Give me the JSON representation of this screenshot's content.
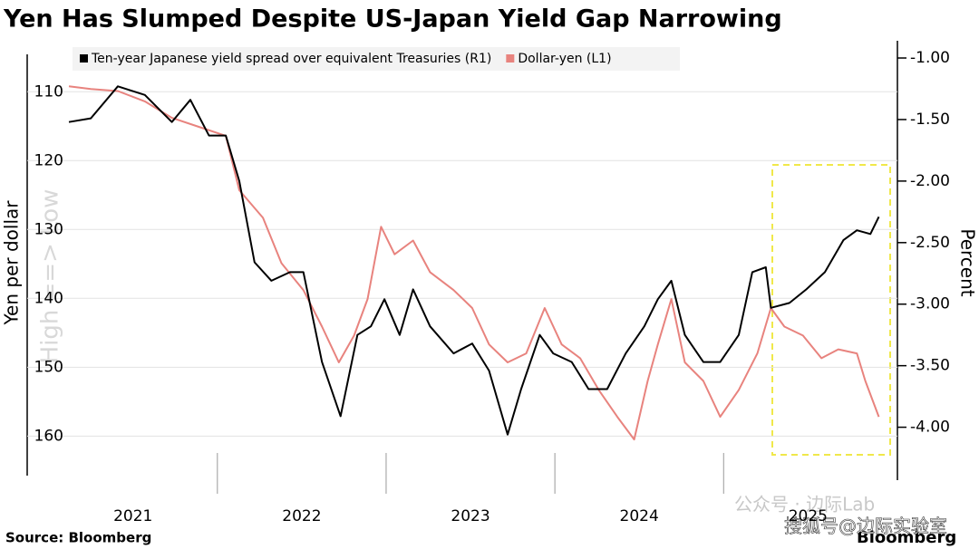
{
  "chart_data": {
    "type": "line",
    "title": "Yen Has Slumped Despite US-Japan Yield Gap Narrowing",
    "y_label": "Yen per dollar",
    "y2_label": "Percent",
    "annotation": "High ==> Low",
    "source": "Source: Bloomberg",
    "logo": "Bloomberg",
    "watermarks": [
      "公众号 · 边际Lab",
      "搜狐号@边际实验室"
    ],
    "xlim": [
      2021.12,
      2026.03
    ],
    "xticks": [
      {
        "value": 2021.5,
        "label": "2021"
      },
      {
        "value": 2022.5,
        "label": "2022"
      },
      {
        "value": 2023.5,
        "label": "2023"
      },
      {
        "value": 2024.5,
        "label": "2024"
      },
      {
        "value": 2025.5,
        "label": "2025"
      }
    ],
    "xgrid": [
      2022,
      2023,
      2024,
      2025
    ],
    "ylim": [
      102.6,
      166.4
    ],
    "y_inverted": true,
    "yticks": [
      110,
      120,
      130,
      140,
      150,
      160
    ],
    "y2lim": [
      -4.43,
      -0.86
    ],
    "y2ticks": [
      {
        "value": -1,
        "label": "-1.00"
      },
      {
        "value": -1.5,
        "label": "-1.50"
      },
      {
        "value": -2,
        "label": "-2.00"
      },
      {
        "value": -2.5,
        "label": "-2.50"
      },
      {
        "value": -3,
        "label": "-3.00"
      },
      {
        "value": -3.5,
        "label": "-3.50"
      },
      {
        "value": -4,
        "label": "-4.00"
      }
    ],
    "grid": true,
    "series": [
      {
        "name": "Ten-year Japanese yield spread over equivalent Treasuries (R1)",
        "color": "#000000",
        "axis": "y2",
        "x": [
          2021.12,
          2021.25,
          2021.41,
          2021.57,
          2021.73,
          2021.84,
          2021.95,
          2022.05,
          2022.13,
          2022.22,
          2022.32,
          2022.43,
          2022.51,
          2022.62,
          2022.73,
          2022.83,
          2022.91,
          2022.99,
          2023.08,
          2023.16,
          2023.26,
          2023.4,
          2023.51,
          2023.61,
          2023.72,
          2023.8,
          2023.91,
          2023.99,
          2024.1,
          2024.2,
          2024.31,
          2024.42,
          2024.53,
          2024.61,
          2024.69,
          2024.77,
          2024.88,
          2024.98,
          2025.09,
          2025.17,
          2025.25,
          2025.28,
          2025.39,
          2025.49,
          2025.6,
          2025.71,
          2025.79,
          2025.87,
          2025.92
        ],
        "values": [
          -1.52,
          -1.49,
          -1.23,
          -1.3,
          -1.52,
          -1.34,
          -1.63,
          -1.63,
          -2.0,
          -2.66,
          -2.81,
          -2.74,
          -2.74,
          -3.47,
          -3.91,
          -3.25,
          -3.18,
          -2.96,
          -3.25,
          -2.88,
          -3.18,
          -3.4,
          -3.32,
          -3.54,
          -4.06,
          -3.69,
          -3.25,
          -3.4,
          -3.47,
          -3.69,
          -3.69,
          -3.4,
          -3.18,
          -2.96,
          -2.81,
          -3.25,
          -3.47,
          -3.47,
          -3.25,
          -2.74,
          -2.7,
          -3.03,
          -2.99,
          -2.88,
          -2.74,
          -2.48,
          -2.4,
          -2.43,
          -2.29
        ]
      },
      {
        "name": "Dollar-yen (L1)",
        "color": "#e8837e",
        "axis": "y",
        "x": [
          2021.12,
          2021.25,
          2021.41,
          2021.57,
          2021.73,
          2021.89,
          2022.05,
          2022.13,
          2022.27,
          2022.38,
          2022.51,
          2022.62,
          2022.72,
          2022.81,
          2022.89,
          2022.97,
          2023.05,
          2023.16,
          2023.26,
          2023.4,
          2023.51,
          2023.61,
          2023.72,
          2023.83,
          2023.94,
          2024.04,
          2024.15,
          2024.26,
          2024.37,
          2024.47,
          2024.55,
          2024.61,
          2024.69,
          2024.77,
          2024.88,
          2024.98,
          2025.09,
          2025.2,
          2025.28,
          2025.36,
          2025.47,
          2025.58,
          2025.68,
          2025.79,
          2025.84,
          2025.92
        ],
        "values": [
          109.2,
          109.6,
          109.9,
          111.4,
          113.8,
          115.1,
          116.4,
          124.3,
          128.3,
          134.9,
          138.8,
          144.1,
          149.3,
          145.4,
          140.1,
          129.6,
          133.6,
          131.6,
          136.2,
          138.8,
          141.4,
          146.7,
          149.3,
          148.0,
          141.4,
          146.7,
          148.7,
          153.3,
          157.2,
          160.5,
          152.0,
          146.7,
          140.1,
          149.3,
          152.0,
          157.2,
          153.3,
          148.0,
          141.4,
          144.1,
          145.4,
          148.7,
          147.4,
          148.0,
          152.0,
          157.2
        ]
      }
    ]
  }
}
